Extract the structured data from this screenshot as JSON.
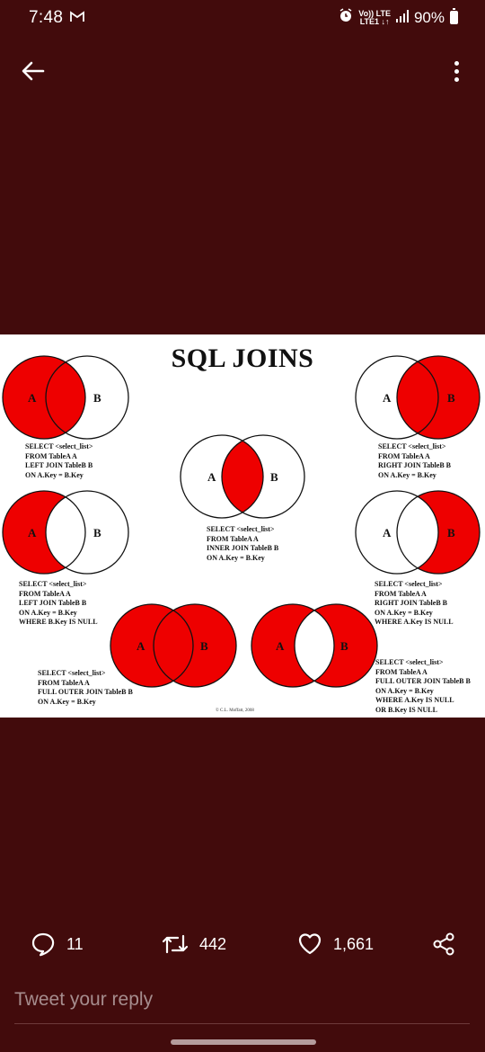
{
  "status": {
    "time": "7:48",
    "network_top": "Vo)) LTE",
    "network_bottom": "LTE1 ↓↑",
    "battery": "90%"
  },
  "image": {
    "title": "SQL JOINS",
    "label_a": "A",
    "label_b": "B",
    "copyright": "© C.L. Moffatt, 2008",
    "queries": {
      "left_join": "SELECT <select_list>\nFROM TableA A\nLEFT JOIN TableB B\nON A.Key = B.Key",
      "inner_join": "SELECT <select_list>\nFROM TableA A\nINNER JOIN TableB B\nON A.Key = B.Key",
      "right_join": "SELECT <select_list>\nFROM TableA A\nRIGHT JOIN TableB B\nON A.Key = B.Key",
      "left_excl": "SELECT <select_list>\nFROM TableA A\nLEFT JOIN TableB B\nON A.Key = B.Key\nWHERE B.Key IS NULL",
      "right_excl": "SELECT <select_list>\nFROM TableA A\nRIGHT JOIN TableB B\nON A.Key = B.Key\nWHERE A.Key IS NULL",
      "full_outer": "SELECT <select_list>\nFROM TableA A\nFULL OUTER JOIN TableB B\nON A.Key = B.Key",
      "full_outer_excl": "SELECT <select_list>\nFROM TableA A\nFULL OUTER JOIN TableB B\nON A.Key = B.Key\nWHERE A.Key IS NULL\nOR B.Key IS NULL"
    }
  },
  "actions": {
    "replies": "11",
    "retweets": "442",
    "likes": "1,661"
  },
  "reply": {
    "placeholder": "Tweet your reply"
  },
  "colors": {
    "background": "#420b0c",
    "venn_fill": "#ee0000"
  }
}
